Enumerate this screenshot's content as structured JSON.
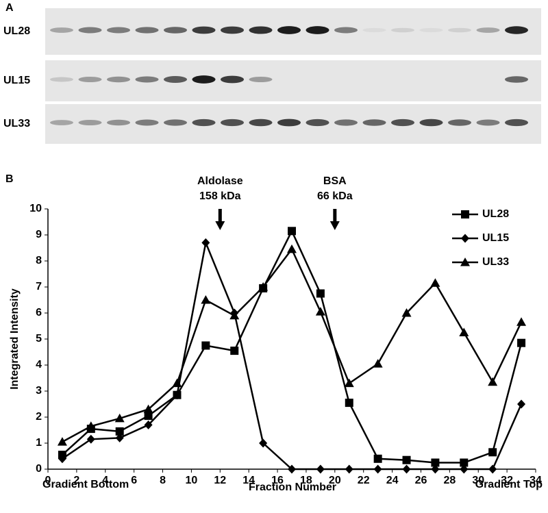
{
  "panel_labels": [
    "A",
    "B"
  ],
  "blot_labels": [
    "UL28",
    "UL15",
    "UL33"
  ],
  "chart_data": {
    "type": "line",
    "y_label": "Integrated Intensity",
    "x_label": "Fraction Number",
    "x_end_labels": [
      "Gradient Bottom",
      "Gradient Top"
    ],
    "annotations": [
      {
        "text": [
          "Aldolase",
          "158 kDa"
        ],
        "x": 12
      },
      {
        "text": [
          "BSA",
          "66 kDa"
        ],
        "x": 20
      }
    ],
    "x": [
      1,
      3,
      5,
      7,
      9,
      11,
      13,
      15,
      17,
      19,
      21,
      23,
      25,
      27,
      29,
      31,
      33
    ],
    "series": [
      {
        "name": "UL28",
        "color": "#000000",
        "marker": "square",
        "values": [
          0.55,
          1.55,
          1.45,
          2.05,
          2.85,
          4.75,
          4.55,
          6.95,
          9.15,
          6.75,
          2.55,
          0.4,
          0.35,
          0.25,
          0.25,
          0.65,
          4.85
        ]
      },
      {
        "name": "UL15",
        "color": "#000000",
        "marker": "diamond",
        "values": [
          0.4,
          1.15,
          1.2,
          1.7,
          2.85,
          8.7,
          6.0,
          1.0,
          0,
          0,
          0,
          0,
          0,
          0,
          0,
          0,
          2.5
        ]
      },
      {
        "name": "UL33",
        "color": "#000000",
        "marker": "triangle",
        "values": [
          1.05,
          1.65,
          1.95,
          2.3,
          3.3,
          6.5,
          5.9,
          7.0,
          8.45,
          6.05,
          3.3,
          4.05,
          6.0,
          7.15,
          5.25,
          3.35,
          5.65
        ]
      }
    ],
    "xlim": [
      0,
      34
    ],
    "xticks": [
      0,
      2,
      4,
      6,
      8,
      10,
      12,
      14,
      16,
      18,
      20,
      22,
      24,
      26,
      28,
      30,
      32,
      34
    ],
    "ylim": [
      0,
      10
    ],
    "yticks": [
      0,
      1,
      2,
      3,
      4,
      5,
      6,
      7,
      8,
      9,
      10
    ],
    "grid": false,
    "legend": "upper right"
  }
}
